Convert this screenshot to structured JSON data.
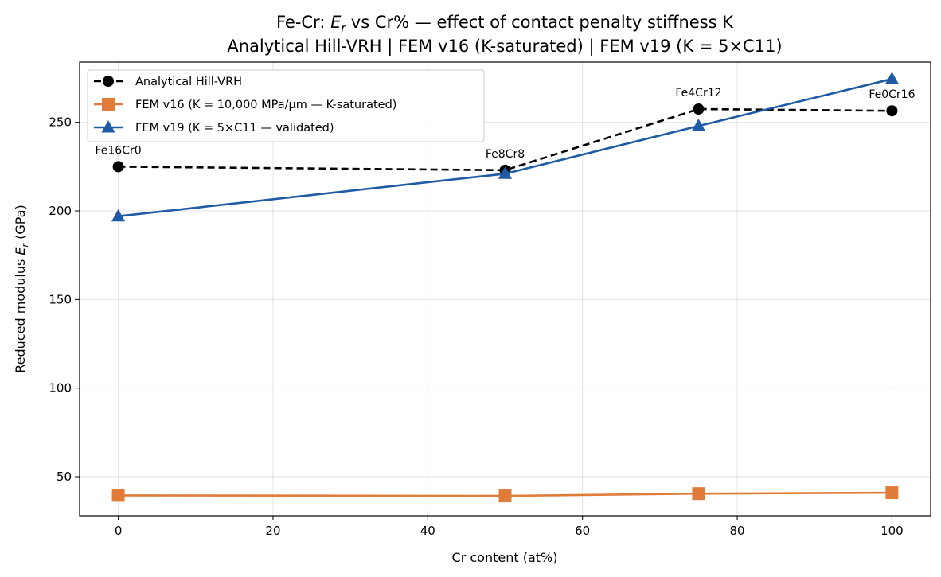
{
  "chart_data": {
    "type": "line",
    "title_line1_prefix": "Fe-Cr:  ",
    "title_line1_math": "E",
    "title_line1_math_sub": "r",
    "title_line1_suffix": " vs Cr% — effect of contact penalty stiffness K",
    "title_line2": "Analytical Hill-VRH  |  FEM v16 (K-saturated)  |  FEM v19 (K = 5×C11)",
    "xlabel": "Cr content (at%)",
    "ylabel_prefix": "Reduced modulus  ",
    "ylabel_math": "E",
    "ylabel_math_sub": "r",
    "ylabel_suffix": "  (GPa)",
    "xlim": [
      -5,
      105
    ],
    "ylim": [
      28,
      284
    ],
    "xticks": [
      0,
      20,
      40,
      60,
      80,
      100
    ],
    "yticks": [
      50,
      100,
      150,
      200,
      250
    ],
    "grid": true,
    "legend_position": "top-left",
    "x": [
      0,
      50,
      75,
      100
    ],
    "point_labels": [
      "Fe16Cr0",
      "Fe8Cr8",
      "Fe4Cr12",
      "Fe0Cr16"
    ],
    "series": [
      {
        "name": "Analytical Hill-VRH",
        "values": [
          225,
          223,
          257.5,
          256.5
        ],
        "color": "#000000",
        "dash": "dashed",
        "marker": "circle"
      },
      {
        "name": "FEM v16  (K = 10,000 MPa/µm — K-saturated)",
        "values": [
          39.5,
          39.2,
          40.5,
          41
        ],
        "color": "#e07b39",
        "dash": "solid",
        "marker": "square"
      },
      {
        "name": "FEM v19  (K = 5×C11 — validated)",
        "values": [
          197,
          221,
          248,
          274.5
        ],
        "color": "#1f5ba5",
        "dash": "solid",
        "marker": "triangle"
      }
    ]
  }
}
